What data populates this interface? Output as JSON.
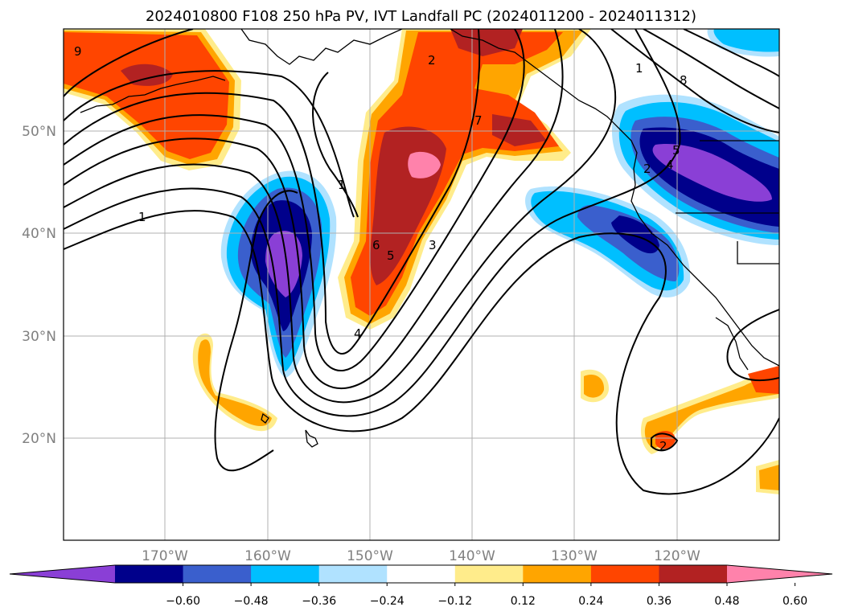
{
  "title": "2024010800 F108 250 hPa PV, IVT Landfall PC (2024011200 - 2024011312)",
  "lat_labels": [
    "50°N",
    "40°N",
    "30°N",
    "20°N"
  ],
  "lon_labels": [
    "170°W",
    "160°W",
    "150°W",
    "140°W",
    "130°W",
    "120°W"
  ],
  "contour_labels": [
    "9",
    "1",
    "2",
    "1",
    "2",
    "3",
    "4",
    "5",
    "6",
    "7",
    "8",
    "1",
    "2",
    "4",
    "5"
  ],
  "colorbar": {
    "ticks": [
      "−0.60",
      "−0.48",
      "−0.36",
      "−0.24",
      "−0.12",
      "0.12",
      "0.24",
      "0.36",
      "0.48",
      "0.60"
    ],
    "colors": [
      "#8a3fd6",
      "#00008b",
      "#3a5fcd",
      "#00bfff",
      "#b0e2ff",
      "#ffffff",
      "#ffec8b",
      "#ffa500",
      "#ff4500",
      "#b22222",
      "#ff82ab"
    ]
  },
  "colors": {
    "neg_strong": "#8a3fd6",
    "neg_dark": "#00008b",
    "neg_mid": "#3a5fcd",
    "neg_light": "#00bfff",
    "neg_pale": "#b0e2ff",
    "pos_pale": "#ffec8b",
    "pos_light": "#ffa500",
    "pos_mid": "#ff4500",
    "pos_dark": "#b22222",
    "pos_strong": "#ff82ab"
  }
}
